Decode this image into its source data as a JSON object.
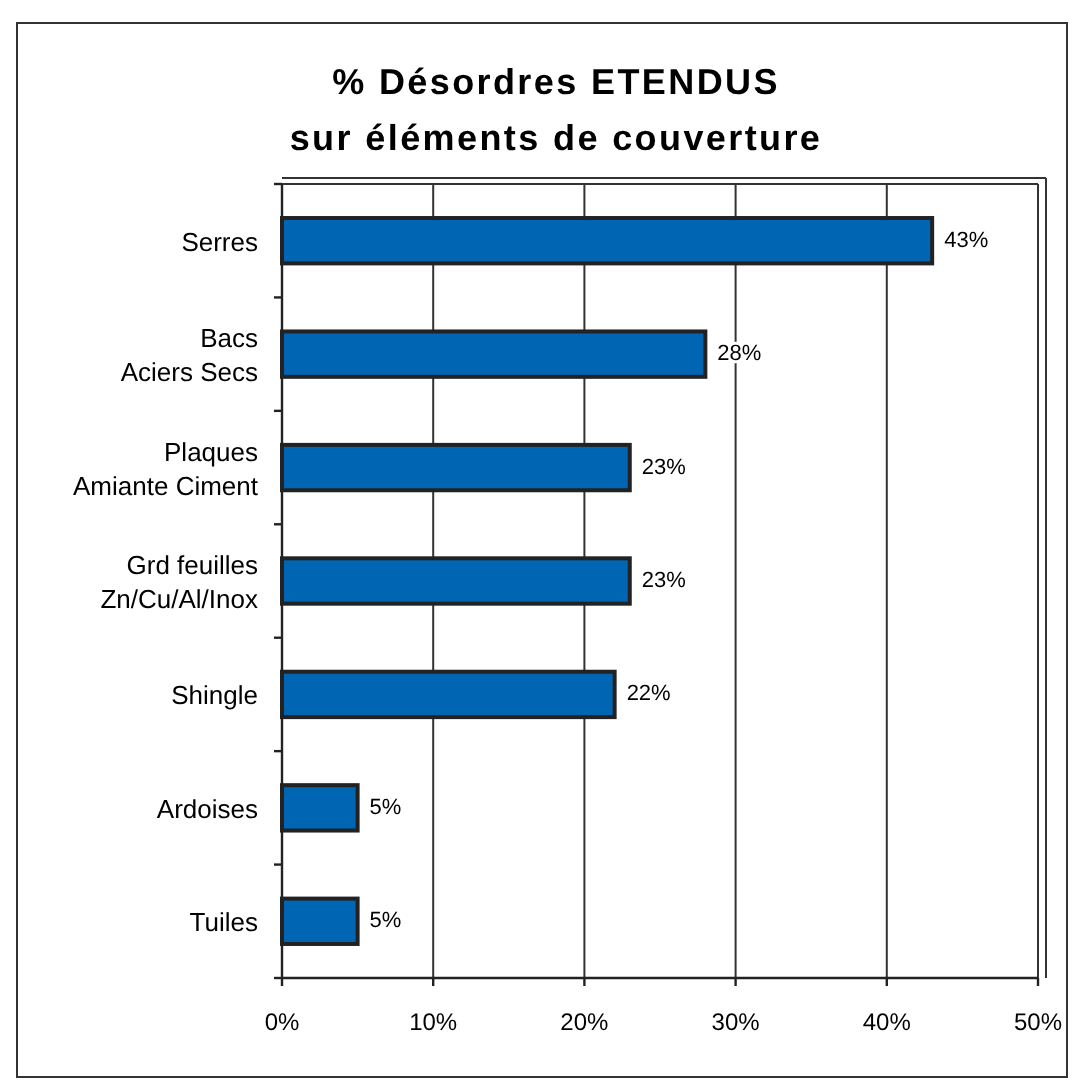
{
  "chart_data": {
    "type": "bar",
    "orientation": "horizontal",
    "title": "% Désordres ETENDUS\nsur éléments de couverture",
    "categories": [
      "Serres",
      "Bacs\nAciers Secs",
      "Plaques\nAmiante Ciment",
      "Grd feuilles\nZn/Cu/Al/Inox",
      "Shingle",
      "Ardoises",
      "Tuiles"
    ],
    "values": [
      43,
      28,
      23,
      23,
      22,
      5,
      5
    ],
    "color": "#0066b3",
    "value_labels": [
      "43%",
      "28%",
      "23%",
      "23%",
      "22%",
      "5%",
      "5%"
    ],
    "xlim": [
      0,
      50
    ],
    "xticks": [
      {
        "value": 0,
        "label": "0%"
      },
      {
        "value": 10,
        "label": "10%"
      },
      {
        "value": 20,
        "label": "20%"
      },
      {
        "value": 30,
        "label": "30%"
      },
      {
        "value": 40,
        "label": "40%"
      },
      {
        "value": 50,
        "label": "50%"
      }
    ],
    "grid": "x"
  }
}
